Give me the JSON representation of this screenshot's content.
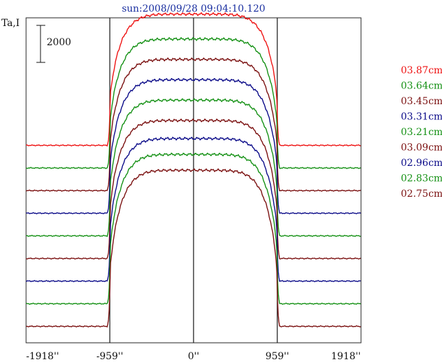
{
  "chart_data": {
    "type": "line",
    "title": "sun:2008/09/28 09:04:10.120",
    "ylabel": "Ta,I",
    "scale_bar_label": "2000",
    "x_ticks": [
      "-1918''",
      "-959''",
      "0''",
      "959''",
      "1918''"
    ],
    "x_tick_values": [
      -1918,
      -959,
      0,
      959,
      1918
    ],
    "xlim": [
      -1918,
      1918
    ],
    "vertical_markers": [
      -959,
      0,
      959
    ],
    "grid": false,
    "legend_position": "right",
    "series": [
      {
        "name": "03.87cm",
        "color": "#ee1111",
        "baseline_offset": 0,
        "disk_level": 5800
      },
      {
        "name": "03.64cm",
        "color": "#139013",
        "baseline_offset": -1000,
        "disk_level": 4700
      },
      {
        "name": "03.45cm",
        "color": "#7a0f0f",
        "baseline_offset": -2000,
        "disk_level": 3800
      },
      {
        "name": "03.31cm",
        "color": "#0a0a88",
        "baseline_offset": -3000,
        "disk_level": 2900
      },
      {
        "name": "03.21cm",
        "color": "#139013",
        "baseline_offset": -4000,
        "disk_level": 2000
      },
      {
        "name": "03.09cm",
        "color": "#7a0f0f",
        "baseline_offset": -5000,
        "disk_level": 1100
      },
      {
        "name": "02.96cm",
        "color": "#0a0a88",
        "baseline_offset": -6000,
        "disk_level": 300
      },
      {
        "name": "02.83cm",
        "color": "#139013",
        "baseline_offset": -7000,
        "disk_level": -400
      },
      {
        "name": "02.75cm",
        "color": "#7a0f0f",
        "baseline_offset": -8000,
        "disk_level": -1100
      }
    ],
    "y_units_per_step": 1000
  }
}
